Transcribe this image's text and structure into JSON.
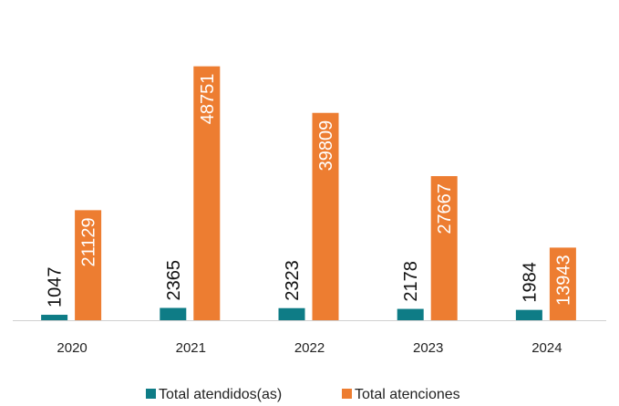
{
  "chart_data": {
    "type": "bar",
    "categories": [
      "2020",
      "2021",
      "2022",
      "2023",
      "2024"
    ],
    "series": [
      {
        "name": "Total atendidos(as)",
        "color": "#0e7c86",
        "values": [
          1047,
          2365,
          2323,
          2178,
          1984
        ]
      },
      {
        "name": "Total atenciones",
        "color": "#ed7d31",
        "values": [
          21129,
          48751,
          39809,
          27667,
          13943
        ]
      }
    ],
    "ylim": [
      0,
      55000
    ],
    "legend": "bottom"
  }
}
